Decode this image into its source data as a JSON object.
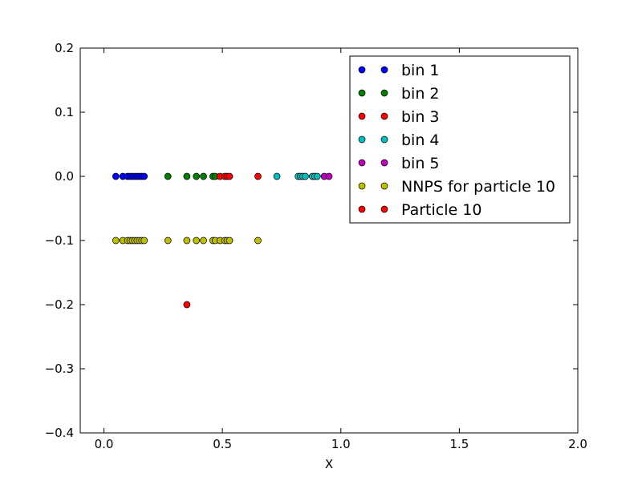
{
  "chart_data": {
    "type": "scatter",
    "xlabel": "X",
    "ylabel": "",
    "title": "",
    "xlim": [
      -0.1,
      2.0
    ],
    "ylim": [
      -0.4,
      0.2
    ],
    "xticks": [
      "0.0",
      "0.5",
      "1.0",
      "1.5",
      "2.0"
    ],
    "xtick_values": [
      0.0,
      0.5,
      1.0,
      1.5,
      2.0
    ],
    "yticks": [
      "0.2",
      "0.1",
      "0.0",
      "−0.1",
      "−0.2",
      "−0.3",
      "−0.4"
    ],
    "ytick_values": [
      0.2,
      0.1,
      0.0,
      -0.1,
      -0.2,
      -0.3,
      -0.4
    ],
    "grid": false,
    "legend_position": "top-right",
    "series": [
      {
        "name": "bin 1",
        "color": "#0000ff",
        "x": [
          0.05,
          0.08,
          0.1,
          0.11,
          0.12,
          0.13,
          0.14,
          0.15,
          0.16,
          0.17
        ],
        "y": [
          0,
          0,
          0,
          0,
          0,
          0,
          0,
          0,
          0,
          0
        ]
      },
      {
        "name": "bin 2",
        "color": "#008000",
        "x": [
          0.27,
          0.35,
          0.39,
          0.42,
          0.46,
          0.47
        ],
        "y": [
          0,
          0,
          0,
          0,
          0,
          0
        ]
      },
      {
        "name": "bin 3",
        "color": "#ff0000",
        "x": [
          0.49,
          0.51,
          0.52,
          0.53,
          0.65
        ],
        "y": [
          0,
          0,
          0,
          0,
          0
        ]
      },
      {
        "name": "bin 4",
        "color": "#00bfbf",
        "x": [
          0.73,
          0.82,
          0.83,
          0.84,
          0.85,
          0.88,
          0.89,
          0.9
        ],
        "y": [
          0,
          0,
          0,
          0,
          0,
          0,
          0,
          0
        ]
      },
      {
        "name": "bin 5",
        "color": "#bf00bf",
        "x": [
          0.93,
          0.95
        ],
        "y": [
          0,
          0
        ]
      },
      {
        "name": "NNPS for particle 10",
        "color": "#bfbf00",
        "x": [
          0.05,
          0.08,
          0.1,
          0.11,
          0.12,
          0.13,
          0.14,
          0.15,
          0.16,
          0.17,
          0.27,
          0.35,
          0.39,
          0.42,
          0.46,
          0.47,
          0.49,
          0.51,
          0.52,
          0.53,
          0.65
        ],
        "y": [
          -0.1,
          -0.1,
          -0.1,
          -0.1,
          -0.1,
          -0.1,
          -0.1,
          -0.1,
          -0.1,
          -0.1,
          -0.1,
          -0.1,
          -0.1,
          -0.1,
          -0.1,
          -0.1,
          -0.1,
          -0.1,
          -0.1,
          -0.1,
          -0.1
        ]
      },
      {
        "name": "Particle 10",
        "color": "#ff0000",
        "x": [
          0.35
        ],
        "y": [
          -0.2
        ]
      }
    ]
  }
}
